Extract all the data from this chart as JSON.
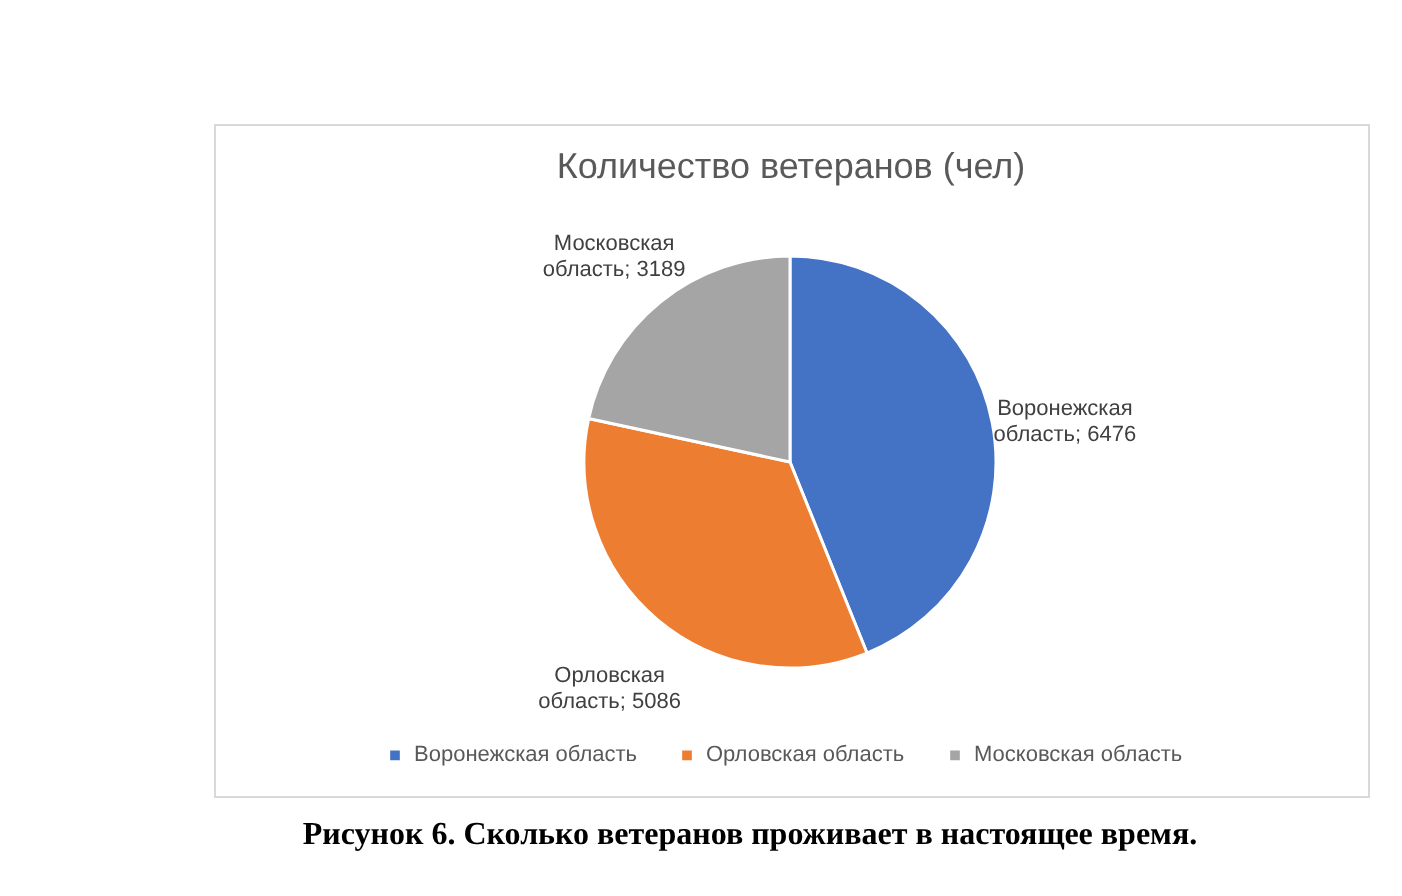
{
  "chart_data": {
    "type": "pie",
    "title": "Количество ветеранов (чел)",
    "categories": [
      "Воронежская область",
      "Орловская область",
      "Московская область"
    ],
    "values": [
      6476,
      5086,
      3189
    ],
    "value_labels": [
      "Воронежская область; 6476",
      "Орловская область; 5086",
      "Московская область; 3189"
    ],
    "colors": [
      "#4472c4",
      "#ed7d31",
      "#a5a5a5"
    ],
    "legend": "bottom",
    "annotations": [
      "Рисунок 6. Сколько ветеранов проживает в настоящее время."
    ]
  }
}
